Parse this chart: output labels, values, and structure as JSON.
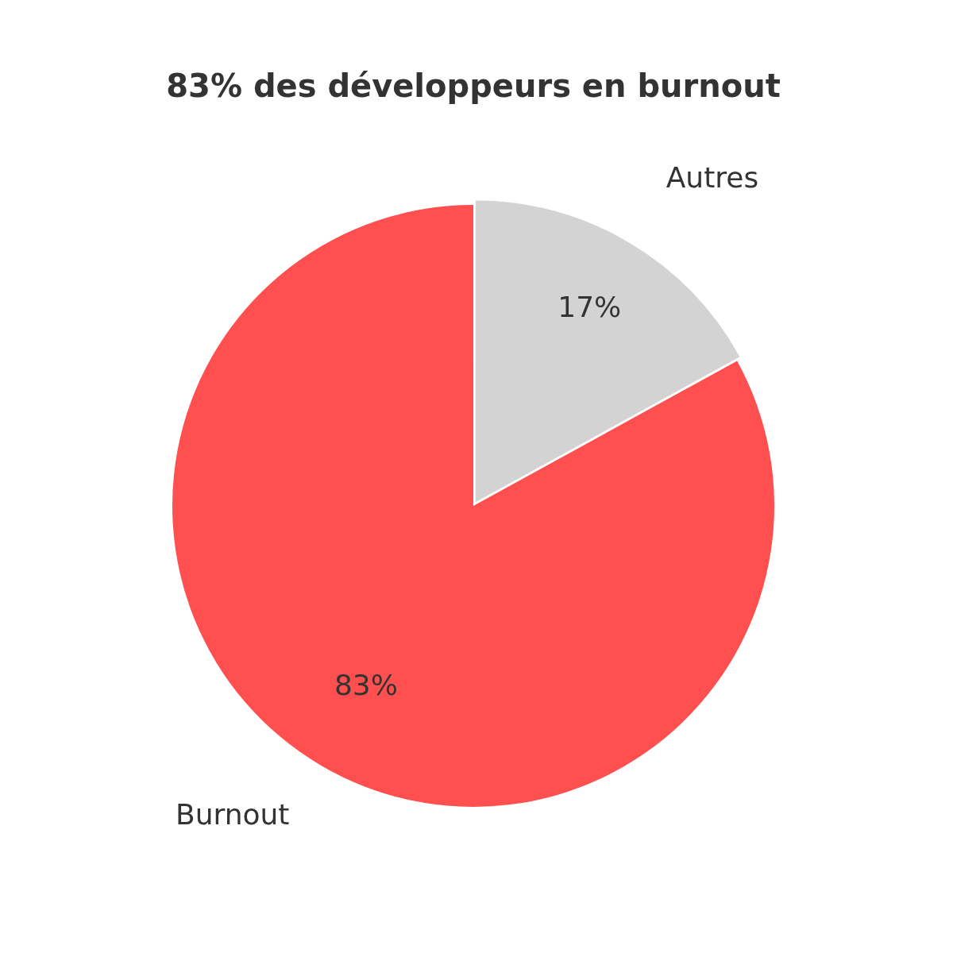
{
  "chart_data": {
    "type": "pie",
    "title": "83% des développeurs en burnout",
    "categories": [
      "Burnout",
      "Autres"
    ],
    "values": [
      83,
      17
    ],
    "colors": [
      "#ff4f4f",
      "#d3d3d3"
    ],
    "value_labels": [
      "83%",
      "17%"
    ],
    "legend": false
  }
}
